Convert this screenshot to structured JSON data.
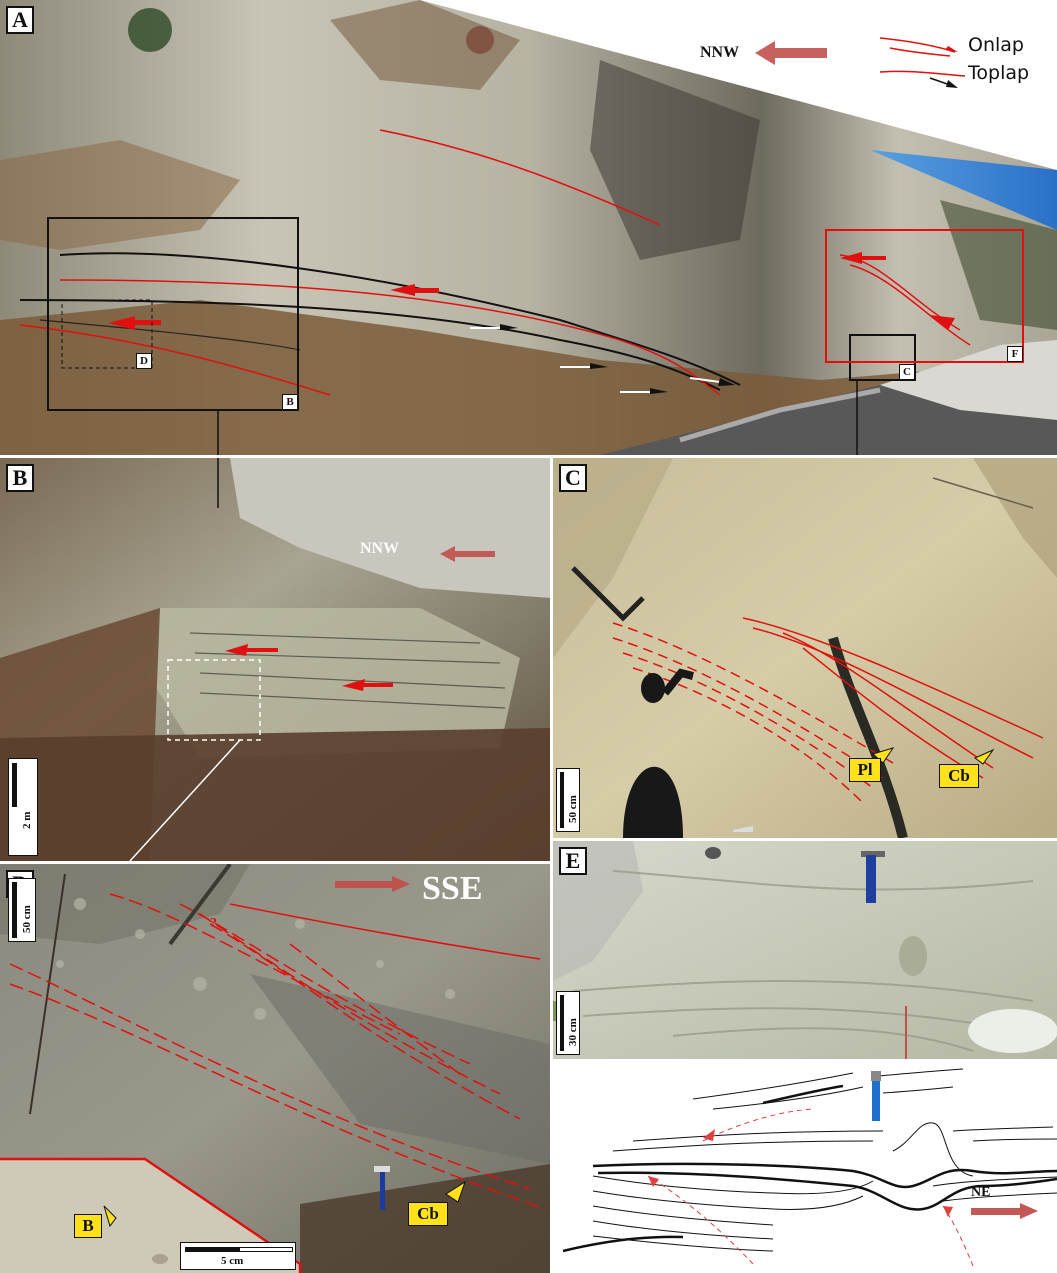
{
  "panels": {
    "A": {
      "label": "A",
      "box_labels": {
        "B": "B",
        "C": "C",
        "D": "D",
        "F": "F"
      },
      "direction": "NNW",
      "legend": {
        "onlap": "Onlap",
        "toplap": "Toplap"
      }
    },
    "B": {
      "label": "B",
      "direction": "NNW",
      "scale": "2 m"
    },
    "C": {
      "label": "C",
      "scale": "50 cm",
      "callouts": {
        "pl": "Pl",
        "cb": "Cb"
      }
    },
    "D": {
      "label": "D",
      "direction": "SSE",
      "scale": "50 cm",
      "question_mark": "?",
      "callouts": {
        "b": "B",
        "cb": "Cb"
      },
      "inset_scale": "5 cm"
    },
    "E": {
      "label": "E",
      "scale": "30 cm",
      "direction": "NE"
    }
  },
  "colors": {
    "interpretation_red": "#e01010",
    "arrow_red": "#c0504d",
    "callout_yellow": "#ffe21a"
  }
}
